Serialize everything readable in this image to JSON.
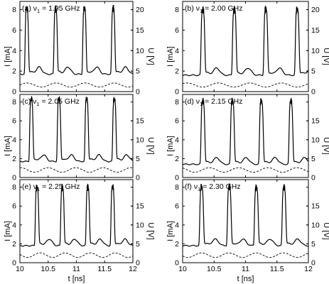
{
  "x_axis": {
    "label": "t [ns]",
    "ticks": [
      "10",
      "10.5",
      "11",
      "11.5",
      "12"
    ],
    "range": [
      10,
      12
    ]
  },
  "left_axis": {
    "label": "I [mA]",
    "ticks": [
      "0",
      "2",
      "4",
      "6",
      "8"
    ],
    "range": [
      0,
      8.8
    ]
  },
  "right_axis": {
    "label": "U [V]",
    "ticks_top_row": [
      "0",
      "5",
      "10",
      "15",
      "20"
    ],
    "ticks_other_rows": [
      "0",
      "5",
      "10",
      "15"
    ],
    "range": [
      0,
      22
    ]
  },
  "chart_data": [
    {
      "type": "line",
      "panel": "(a)",
      "param_symbol": "ν",
      "param_sub": "1",
      "param_value": "= 1.95 GHz",
      "freq_ghz": 1.95,
      "peak_times_ns": [
        10.12,
        10.63,
        11.14,
        11.65
      ],
      "series": [
        {
          "name": "I",
          "axis": "left",
          "unit": "mA",
          "baseline": 1.7,
          "peak": 8.0
        },
        {
          "name": "U",
          "axis": "right",
          "unit": "V",
          "mean": 1.6,
          "amplitude": 0.5
        }
      ]
    },
    {
      "type": "line",
      "panel": "(b)",
      "param_symbol": "ν",
      "param_sub": "1",
      "param_value": "= 2.00 GHz",
      "freq_ghz": 2.0,
      "peak_times_ns": [
        10.32,
        10.82,
        11.32,
        11.82
      ],
      "series": [
        {
          "name": "I",
          "axis": "left",
          "unit": "mA",
          "baseline": 1.6,
          "peak": 7.9
        },
        {
          "name": "U",
          "axis": "right",
          "unit": "V",
          "mean": 1.6,
          "amplitude": 0.5
        }
      ]
    },
    {
      "type": "line",
      "panel": "(c)",
      "param_symbol": "ν",
      "param_sub": "1",
      "param_value": "= 2.05 GHz",
      "freq_ghz": 2.05,
      "peak_times_ns": [
        10.2,
        10.69,
        11.18,
        11.67
      ],
      "series": [
        {
          "name": "I",
          "axis": "left",
          "unit": "mA",
          "baseline": 1.7,
          "peak": 8.2
        },
        {
          "name": "U",
          "axis": "right",
          "unit": "V",
          "mean": 2.0,
          "amplitude": 0.6
        }
      ]
    },
    {
      "type": "line",
      "panel": "(d)",
      "param_symbol": "ν",
      "param_sub": "1",
      "param_value": "= 2.15 GHz",
      "freq_ghz": 2.15,
      "peak_times_ns": [
        10.32,
        10.79,
        11.25,
        11.72
      ],
      "series": [
        {
          "name": "I",
          "axis": "left",
          "unit": "mA",
          "baseline": 1.4,
          "peak": 8.0
        },
        {
          "name": "U",
          "axis": "right",
          "unit": "V",
          "mean": 2.0,
          "amplitude": 0.6
        }
      ]
    },
    {
      "type": "line",
      "panel": "(e)",
      "param_symbol": "ν",
      "param_sub": "1",
      "param_value": "= 2.25 GHz",
      "freq_ghz": 2.25,
      "peak_times_ns": [
        10.3,
        10.75,
        11.2,
        11.64
      ],
      "series": [
        {
          "name": "I",
          "axis": "left",
          "unit": "mA",
          "baseline": 1.8,
          "peak": 7.9
        },
        {
          "name": "U",
          "axis": "right",
          "unit": "V",
          "mean": 2.0,
          "amplitude": 0.6
        }
      ]
    },
    {
      "type": "line",
      "panel": "(f)",
      "param_symbol": "ν",
      "param_sub": "1",
      "param_value": "= 2.30 GHz",
      "freq_ghz": 2.3,
      "peak_times_ns": [
        10.3,
        10.74,
        11.17,
        11.61
      ],
      "series": [
        {
          "name": "I",
          "axis": "left",
          "unit": "mA",
          "baseline": 1.8,
          "peak": 7.9
        },
        {
          "name": "U",
          "axis": "right",
          "unit": "V",
          "mean": 2.0,
          "amplitude": 0.6
        }
      ]
    }
  ]
}
